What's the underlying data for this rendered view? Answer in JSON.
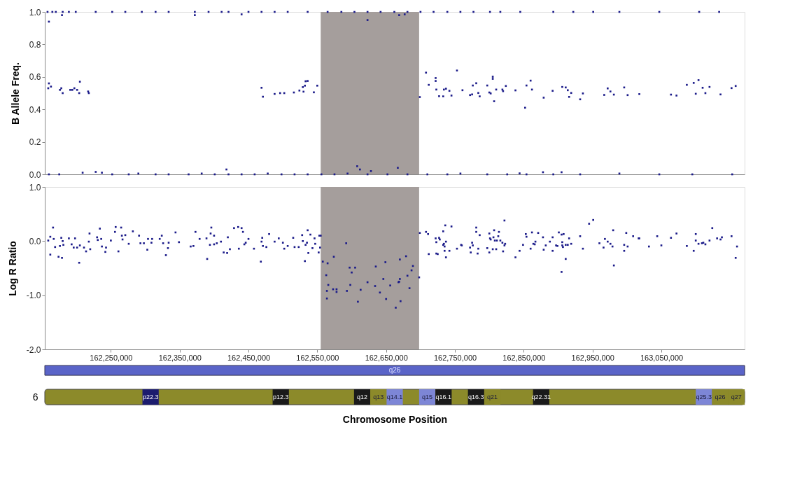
{
  "chart_data": [
    {
      "type": "scatter",
      "ylabel": "B Allele Freq.",
      "color": "#1c1c8a",
      "marker": "square",
      "grid": false,
      "tick_labels": "y",
      "xlim": [
        162154000,
        163171000
      ],
      "ylim": [
        0,
        1
      ],
      "yticks": [
        {
          "value": 0,
          "label": "0.0"
        },
        {
          "value": 0.2,
          "label": "0.2"
        },
        {
          "value": 0.4,
          "label": "0.4"
        },
        {
          "value": 0.6,
          "label": "0.6"
        },
        {
          "value": 0.8,
          "label": "0.8"
        },
        {
          "value": 1,
          "label": "1.0"
        }
      ],
      "bands": [
        {
          "axis": "x",
          "from": 162555000,
          "to": 162698000,
          "color": "#a59e9c"
        }
      ],
      "x": [
        162158000,
        162165000,
        162170000,
        162180000,
        162189000,
        162199000,
        162228000,
        162252000,
        162271000,
        162295000,
        162315000,
        162334000,
        162372000,
        162392000,
        162411000,
        162421000,
        162450000,
        162469000,
        162488000,
        162507000,
        162536000,
        162565000,
        162585000,
        162604000,
        162623000,
        162642000,
        162662000,
        162681000,
        162700000,
        162719000,
        162739000,
        162758000,
        162777000,
        162801000,
        162816000,
        162845000,
        162893000,
        162922000,
        162951000,
        162989000,
        163047000,
        163105000,
        163134000,
        162160000,
        162179000,
        162372000,
        162440000,
        162623000,
        162669000,
        162677000,
        162159000,
        162160000,
        162163000,
        162176000,
        162178000,
        162180000,
        162191000,
        162194000,
        162197000,
        162201000,
        162204000,
        162205000,
        162217000,
        162218000,
        162469000,
        162471000,
        162488000,
        162496000,
        162502000,
        162516000,
        162524000,
        162529000,
        162532000,
        162536000,
        162530000,
        162545000,
        162550000,
        162533000,
        162699000,
        162708000,
        162712000,
        162722000,
        162722000,
        162723000,
        162727000,
        162734000,
        162737000,
        162733000,
        162742000,
        162745000,
        162753000,
        162761000,
        162772000,
        162775000,
        162776000,
        162781000,
        162784000,
        162786000,
        162797000,
        162800000,
        162802000,
        162805000,
        162805000,
        162810000,
        162807000,
        162819000,
        162820000,
        162824000,
        162838000,
        162852000,
        162854000,
        162860000,
        162862000,
        162879000,
        162892000,
        162906000,
        162911000,
        162914000,
        162916000,
        162919000,
        162932000,
        162936000,
        162967000,
        162972000,
        162976000,
        162981000,
        162996000,
        163001000,
        163018000,
        163064000,
        163072000,
        163087000,
        163097000,
        163104000,
        163100000,
        163110000,
        163114000,
        163120000,
        163136000,
        163152000,
        163158000,
        162160000,
        162175000,
        162209000,
        162228000,
        162237000,
        162252000,
        162276000,
        162290000,
        162315000,
        162334000,
        162363000,
        162382000,
        162401000,
        162421000,
        162440000,
        162459000,
        162478000,
        162498000,
        162517000,
        162536000,
        162556000,
        162575000,
        162594000,
        162623000,
        162652000,
        162681000,
        162710000,
        162739000,
        162758000,
        162797000,
        162826000,
        162854000,
        162893000,
        162932000,
        162989000,
        163047000,
        163095000,
        163153000,
        162418000,
        162608000,
        162612000,
        162628000,
        162667000,
        162878000,
        162905000,
        162844000
      ],
      "values": [
        1,
        1,
        1,
        1,
        1,
        1,
        1,
        1,
        1,
        1,
        1,
        1,
        1,
        1,
        1,
        1,
        1,
        1,
        1,
        1,
        1,
        1,
        1,
        1,
        1,
        1,
        1,
        1,
        1,
        1,
        1,
        1,
        1,
        1,
        1,
        1,
        1,
        1,
        1,
        1,
        1,
        1,
        1,
        0.94,
        0.98,
        0.98,
        0.985,
        0.95,
        0.98,
        0.985,
        0.53,
        0.56,
        0.54,
        0.52,
        0.53,
        0.5,
        0.52,
        0.52,
        0.53,
        0.52,
        0.5,
        0.57,
        0.51,
        0.5,
        0.533,
        0.478,
        0.495,
        0.5,
        0.5,
        0.504,
        0.516,
        0.537,
        0.546,
        0.575,
        0.509,
        0.505,
        0.546,
        0.573,
        0.476,
        0.626,
        0.551,
        0.593,
        0.575,
        0.522,
        0.481,
        0.522,
        0.527,
        0.48,
        0.514,
        0.485,
        0.639,
        0.518,
        0.488,
        0.492,
        0.547,
        0.561,
        0.501,
        0.48,
        0.547,
        0.504,
        0.498,
        0.601,
        0.588,
        0.522,
        0.45,
        0.522,
        0.512,
        0.544,
        0.517,
        0.41,
        0.547,
        0.577,
        0.522,
        0.472,
        0.514,
        0.538,
        0.535,
        0.518,
        0.477,
        0.501,
        0.462,
        0.498,
        0.489,
        0.529,
        0.51,
        0.491,
        0.535,
        0.488,
        0.494,
        0.491,
        0.485,
        0.551,
        0.563,
        0.58,
        0.496,
        0.533,
        0.5,
        0.538,
        0.492,
        0.531,
        0.544,
        0,
        0,
        0.01,
        0.015,
        0.01,
        0,
        0,
        0.005,
        0,
        0,
        0,
        0.005,
        0,
        0,
        0,
        0,
        0.005,
        0,
        0,
        0,
        0,
        0,
        0.005,
        0,
        0,
        0,
        0,
        0,
        0.005,
        0,
        0,
        0,
        0,
        0,
        0.005,
        0,
        0,
        0,
        0.03,
        0.05,
        0.03,
        0.02,
        0.04,
        0.013,
        0.013,
        0.006
      ]
    },
    {
      "type": "scatter",
      "ylabel": "Log R Ratio",
      "color": "#1c1c8a",
      "marker": "square",
      "grid": false,
      "xlim": [
        162154000,
        163171000
      ],
      "ylim": [
        -2,
        1
      ],
      "yticks": [
        {
          "value": -2,
          "label": "-2.0"
        },
        {
          "value": -1,
          "label": "-1.0"
        },
        {
          "value": 0,
          "label": "0.0"
        },
        {
          "value": 1,
          "label": "1.0"
        }
      ],
      "xticks": [
        {
          "value": 162250000,
          "label": "162,250,000"
        },
        {
          "value": 162350000,
          "label": "162,350,000"
        },
        {
          "value": 162450000,
          "label": "162,450,000"
        },
        {
          "value": 162550000,
          "label": "162,550,000"
        },
        {
          "value": 162650000,
          "label": "162,650,000"
        },
        {
          "value": 162750000,
          "label": "162,750,000"
        },
        {
          "value": 162850000,
          "label": "162,850,000"
        },
        {
          "value": 162950000,
          "label": "162,950,000"
        },
        {
          "value": 163050000,
          "label": "163,050,000"
        }
      ],
      "bands": [
        {
          "axis": "x",
          "from": 162555000,
          "to": 162698000,
          "color": "#a59e9c"
        }
      ],
      "x": [
        162159000,
        162162000,
        162162000,
        162166000,
        162167000,
        162169000,
        162174000,
        162176000,
        162178000,
        162179000,
        162180000,
        162181000,
        162189000,
        162193000,
        162196000,
        162198000,
        162201000,
        162204000,
        162205000,
        162211000,
        162214000,
        162218000,
        162219000,
        162220000,
        162230000,
        162231000,
        162234000,
        162236000,
        162237000,
        162242000,
        162243000,
        162250000,
        162256000,
        162257000,
        162261000,
        162265000,
        162266000,
        162267000,
        162271000,
        162276000,
        162282000,
        162291000,
        162293000,
        162298000,
        162303000,
        162304000,
        162309000,
        162310000,
        162321000,
        162324000,
        162326000,
        162330000,
        162333000,
        162334000,
        162344000,
        162349000,
        162366000,
        162370000,
        162373000,
        162379000,
        162389000,
        162390000,
        162394000,
        162395000,
        162396000,
        162400000,
        162400000,
        162404000,
        162410000,
        162414000,
        162419000,
        162420000,
        162423000,
        162429000,
        162435000,
        162436000,
        162440000,
        162442000,
        162444000,
        162446000,
        162450000,
        162458000,
        162469000,
        162470000,
        162468000,
        162471000,
        162476000,
        162480000,
        162488000,
        162494000,
        162500000,
        162502000,
        162507000,
        162515000,
        162517000,
        162523000,
        162528000,
        162529000,
        162532000,
        162533000,
        162535000,
        162536000,
        162537000,
        162540000,
        162543000,
        162546000,
        162547000,
        162552000,
        162553000,
        162555000,
        162554000,
        162558000,
        162563000,
        162565000,
        162564000,
        162566000,
        162564000,
        162573000,
        162574000,
        162578000,
        162578000,
        162592000,
        162593000,
        162597000,
        162598000,
        162600000,
        162605000,
        162609000,
        162613000,
        162623000,
        162635000,
        162634000,
        162641000,
        162646000,
        162649000,
        162650000,
        162656000,
        162664000,
        162668000,
        162669000,
        162670000,
        162670000,
        162671000,
        162679000,
        162681000,
        162684000,
        162687000,
        162689000,
        162698000,
        162699000,
        162708000,
        162711000,
        162712000,
        162722000,
        162723000,
        162723000,
        162725000,
        162727000,
        162728000,
        162733000,
        162733000,
        162734000,
        162735000,
        162735000,
        162736000,
        162737000,
        162737000,
        162742000,
        162745000,
        162753000,
        162759000,
        162760000,
        162772000,
        162773000,
        162775000,
        162776000,
        162781000,
        162781000,
        162783000,
        162784000,
        162786000,
        162797000,
        162800000,
        162800000,
        162801000,
        162802000,
        162805000,
        162806000,
        162807000,
        162808000,
        162810000,
        162811000,
        162813000,
        162814000,
        162816000,
        162819000,
        162820000,
        162822000,
        162822000,
        162823000,
        162838000,
        162844000,
        162849000,
        162853000,
        162854000,
        162860000,
        162862000,
        162864000,
        162866000,
        162867000,
        162871000,
        162878000,
        162879000,
        162882000,
        162888000,
        162892000,
        162892000,
        162897000,
        162899000,
        162901000,
        162905000,
        162905000,
        162906000,
        162906000,
        162907000,
        162908000,
        162911000,
        162911000,
        162914000,
        162916000,
        162919000,
        162932000,
        162936000,
        162945000,
        162951000,
        162960000,
        162966000,
        162968000,
        162972000,
        162976000,
        162979000,
        162980000,
        162981000,
        162996000,
        162996000,
        162999000,
        163001000,
        163009000,
        163017000,
        163018000,
        163032000,
        163044000,
        163050000,
        163064000,
        163072000,
        163087000,
        163097000,
        163100000,
        163100000,
        163104000,
        163109000,
        163111000,
        163114000,
        163120000,
        163124000,
        163131000,
        163136000,
        163138000,
        163152000,
        163158000,
        163160000
      ],
      "values": [
        0.01,
        0.08,
        -0.25,
        0.25,
        0.04,
        -0.11,
        -0.29,
        -0.09,
        0.06,
        -0.31,
        0,
        -0.07,
        0.05,
        -0.06,
        -0.12,
        0.05,
        -0.12,
        -0.4,
        -0.08,
        -0.12,
        -0.19,
        -0.01,
        0.14,
        -0.15,
        0.07,
        0.02,
        0.23,
        0.04,
        -0.1,
        -0.2,
        -0.12,
        0.01,
        0.17,
        0.26,
        -0.19,
        0.25,
        0.1,
        0.03,
        0.11,
        -0.05,
        0.18,
        0.1,
        -0.04,
        -0.04,
        -0.16,
        0.04,
        -0.03,
        0.04,
        0.04,
        0.1,
        -0.04,
        -0.26,
        -0.13,
        -0.03,
        0.16,
        -0.02,
        -0.1,
        -0.09,
        0.17,
        0.04,
        0.05,
        -0.33,
        -0.07,
        0.14,
        0.25,
        0.1,
        -0.06,
        -0.04,
        -0.01,
        -0.21,
        -0.22,
        0.07,
        -0.15,
        0.24,
        0.26,
        -0.14,
        0.24,
        0.17,
        -0.06,
        -0.03,
        0.04,
        -0.14,
        -0.01,
        0.06,
        -0.38,
        -0.09,
        -0.11,
        0.13,
        -0.01,
        0.05,
        -0.03,
        -0.14,
        -0.09,
        0.06,
        -0.11,
        -0.11,
        0.11,
        0,
        -0.37,
        -0.07,
        -0.03,
        0.2,
        -0.22,
        0.12,
        -0.13,
        0.05,
        -0.05,
        -0.21,
        0.1,
        0.1,
        -0.12,
        -0.38,
        -0.63,
        -0.41,
        -1.06,
        -0.81,
        -0.92,
        -0.89,
        -0.29,
        -0.89,
        -0.94,
        -0.04,
        -0.92,
        -0.49,
        -0.81,
        -0.58,
        -0.49,
        -1.12,
        -0.9,
        -0.76,
        -0.47,
        -0.83,
        -0.95,
        -0.7,
        -0.39,
        -1.07,
        -0.82,
        -1.23,
        -0.76,
        -0.75,
        -0.7,
        -0.34,
        -1.11,
        -0.28,
        -0.64,
        -0.87,
        -0.54,
        -0.46,
        -0.67,
        0.15,
        0.17,
        0.13,
        -0.24,
        0.05,
        -0.02,
        -0.23,
        -0.24,
        0.06,
        0.03,
        0.18,
        -0.07,
        -0.05,
        -0.18,
        -0.1,
        0.29,
        -0.01,
        -0.3,
        -0.18,
        0.27,
        -0.14,
        -0.07,
        -0.08,
        -0.12,
        -0.21,
        -0.03,
        -0.08,
        0.25,
        0.17,
        -0.23,
        -0.14,
        0.11,
        -0.13,
        0.14,
        -0.21,
        0.05,
        0.03,
        -0.15,
        0.07,
        0.2,
        0.01,
        -0.15,
        0.01,
        0.09,
        0.17,
        0.01,
        -0.03,
        -0.19,
        -0.08,
        0.38,
        -0.05,
        -0.3,
        -0.18,
        -0.07,
        0.13,
        0.08,
        -0.14,
        0.16,
        -0.05,
        -0.06,
        -0.01,
        0.15,
        0.07,
        -0.16,
        -0.08,
        -0.01,
        -0.18,
        0.07,
        -0.08,
        -0.09,
        0.16,
        0.12,
        -0.57,
        -0.02,
        -0.08,
        -0.11,
        0.13,
        -0.07,
        -0.33,
        -0.07,
        0.05,
        -0.05,
        0.09,
        -0.14,
        0.32,
        0.39,
        -0.04,
        -0.12,
        0.04,
        -0.01,
        -0.05,
        -0.1,
        0.2,
        -0.45,
        -0.18,
        -0.07,
        0.15,
        -0.1,
        0.09,
        0.05,
        0.05,
        -0.1,
        0.09,
        -0.08,
        0.06,
        0.14,
        -0.09,
        -0.18,
        0.13,
        0.01,
        -0.05,
        -0.04,
        -0.03,
        -0.06,
        0.01,
        0.24,
        0.05,
        0.03,
        0.07,
        0.09,
        -0.31,
        -0.1
      ]
    },
    {
      "type": "other",
      "ylabel": "6",
      "xlabel": "Chromosome Position",
      "annotations": [
        "q26"
      ],
      "categories": [
        null,
        null,
        null,
        null,
        null,
        null,
        "p22.3",
        null,
        null,
        null,
        null,
        null,
        null,
        null,
        "p12.3",
        null,
        null,
        null,
        null,
        "q12",
        "q13",
        "q14.1",
        null,
        "q15",
        "q16.1",
        null,
        "q16.3",
        "q21",
        null,
        null,
        "q22.31",
        null,
        null,
        null,
        null,
        null,
        null,
        null,
        null,
        null,
        "q25.3",
        "q26",
        "q27"
      ],
      "colors": [
        null,
        null,
        null,
        null,
        null,
        null,
        "#1c1c6e",
        null,
        null,
        null,
        null,
        null,
        null,
        null,
        "#1a1a1a",
        null,
        null,
        null,
        null,
        "#1a1a1a",
        "#8c8a2a",
        "#7d86d6",
        null,
        "#7d86d6",
        "#1a1a1a",
        null,
        "#1a1a1a",
        "#8c8a2a",
        null,
        null,
        "#1a1a1a",
        null,
        null,
        null,
        null,
        null,
        null,
        null,
        null,
        null,
        "#7d86d6",
        "#8c8a2a",
        "#8c8a2a"
      ]
    }
  ]
}
